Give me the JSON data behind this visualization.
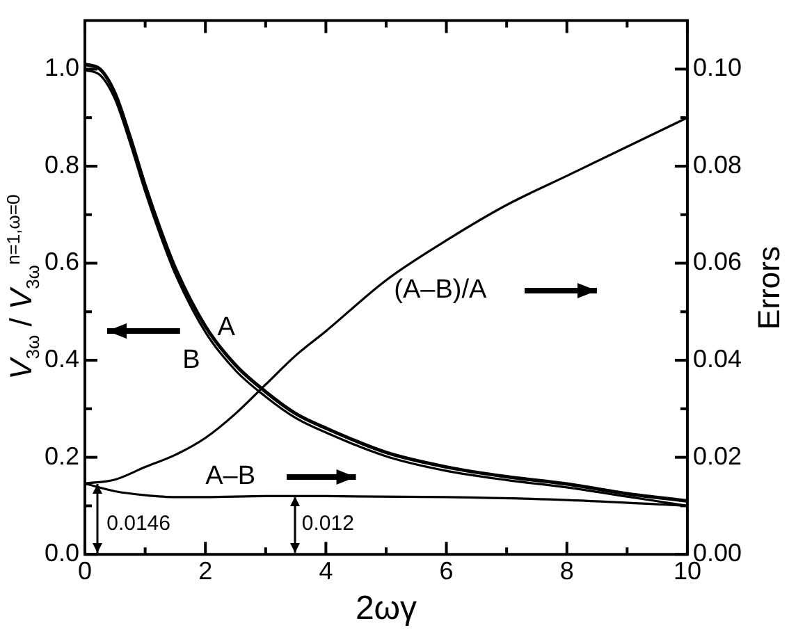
{
  "chart_data": {
    "type": "line",
    "xlabel": "2ωγ",
    "ylabel": "V$_{3ω}$ / V$_{3ω}$$^{n=1,ω=0}$",
    "y2label": "Errors",
    "xlim": [
      0,
      10
    ],
    "xticks": [
      0,
      {
        "value": 1,
        "label": null
      },
      2,
      {
        "value": 3,
        "label": null
      },
      4,
      {
        "value": 5,
        "label": null
      },
      6,
      {
        "value": 7,
        "label": null
      },
      8,
      {
        "value": 9,
        "label": null
      },
      10
    ],
    "ylim": [
      0,
      1.1
    ],
    "yticks": [
      {
        "value": 0,
        "label": "0.0"
      },
      {
        "value": 0.1,
        "label": null
      },
      0.2,
      {
        "value": 0.3,
        "label": null
      },
      0.4,
      {
        "value": 0.5,
        "label": null
      },
      0.6,
      {
        "value": 0.7,
        "label": null
      },
      0.8,
      {
        "value": 0.9,
        "label": null
      },
      {
        "value": 1,
        "label": "1.0"
      }
    ],
    "y2lim": [
      0,
      0.11
    ],
    "y2ticks": [
      {
        "value": 0,
        "label": "0.00"
      },
      {
        "value": 0.01,
        "label": null
      },
      0.02,
      {
        "value": 0.03,
        "label": null
      },
      0.04,
      {
        "value": 0.05,
        "label": null
      },
      0.06,
      {
        "value": 0.07,
        "label": null
      },
      0.08,
      {
        "value": 0.09,
        "label": null
      },
      {
        "value": 0.1,
        "label": "0.10"
      }
    ],
    "grid": false,
    "legend": false,
    "marker": "none",
    "line_style": "solid",
    "series": [
      {
        "color": "#000000",
        "x": [
          0,
          0.25,
          0.5,
          0.75,
          1,
          1.25,
          1.5,
          2,
          2.5,
          3,
          3.5,
          4,
          5,
          6,
          7,
          8,
          9,
          10
        ],
        "values": [
          1.01,
          1.0,
          0.95,
          0.86,
          0.76,
          0.67,
          0.59,
          0.47,
          0.39,
          0.335,
          0.29,
          0.26,
          0.21,
          0.18,
          0.16,
          0.145,
          0.125,
          0.11
        ]
      },
      {
        "color": "#000000",
        "x": [
          0,
          0.25,
          0.5,
          0.75,
          1,
          1.25,
          1.5,
          2,
          2.5,
          3,
          3.5,
          4,
          5,
          6,
          7,
          8,
          9,
          10
        ],
        "values": [
          0.998,
          0.988,
          0.938,
          0.848,
          0.748,
          0.658,
          0.578,
          0.458,
          0.379,
          0.325,
          0.281,
          0.251,
          0.202,
          0.172,
          0.153,
          0.138,
          0.119,
          0.1
        ]
      },
      {
        "color": "#000000",
        "axis": "y2",
        "x": [
          0,
          0.5,
          1,
          1.5,
          2,
          2.5,
          3,
          3.5,
          4,
          5,
          6,
          7,
          8,
          9,
          10
        ],
        "values": [
          0.0146,
          0.0154,
          0.018,
          0.0205,
          0.024,
          0.029,
          0.035,
          0.041,
          0.046,
          0.0565,
          0.0647,
          0.072,
          0.078,
          0.084,
          0.09
        ]
      },
      {
        "color": "#000000",
        "axis": "y2",
        "x": [
          0,
          0.5,
          1,
          1.5,
          2,
          3,
          4,
          6,
          8,
          10
        ],
        "values": [
          0.0146,
          0.013,
          0.0122,
          0.0118,
          0.0118,
          0.012,
          0.012,
          0.0118,
          0.0112,
          0.01
        ]
      }
    ],
    "annotations": [
      "A",
      "B",
      "(A–B)/A",
      "A–B",
      "0.0146",
      "0.012"
    ]
  }
}
